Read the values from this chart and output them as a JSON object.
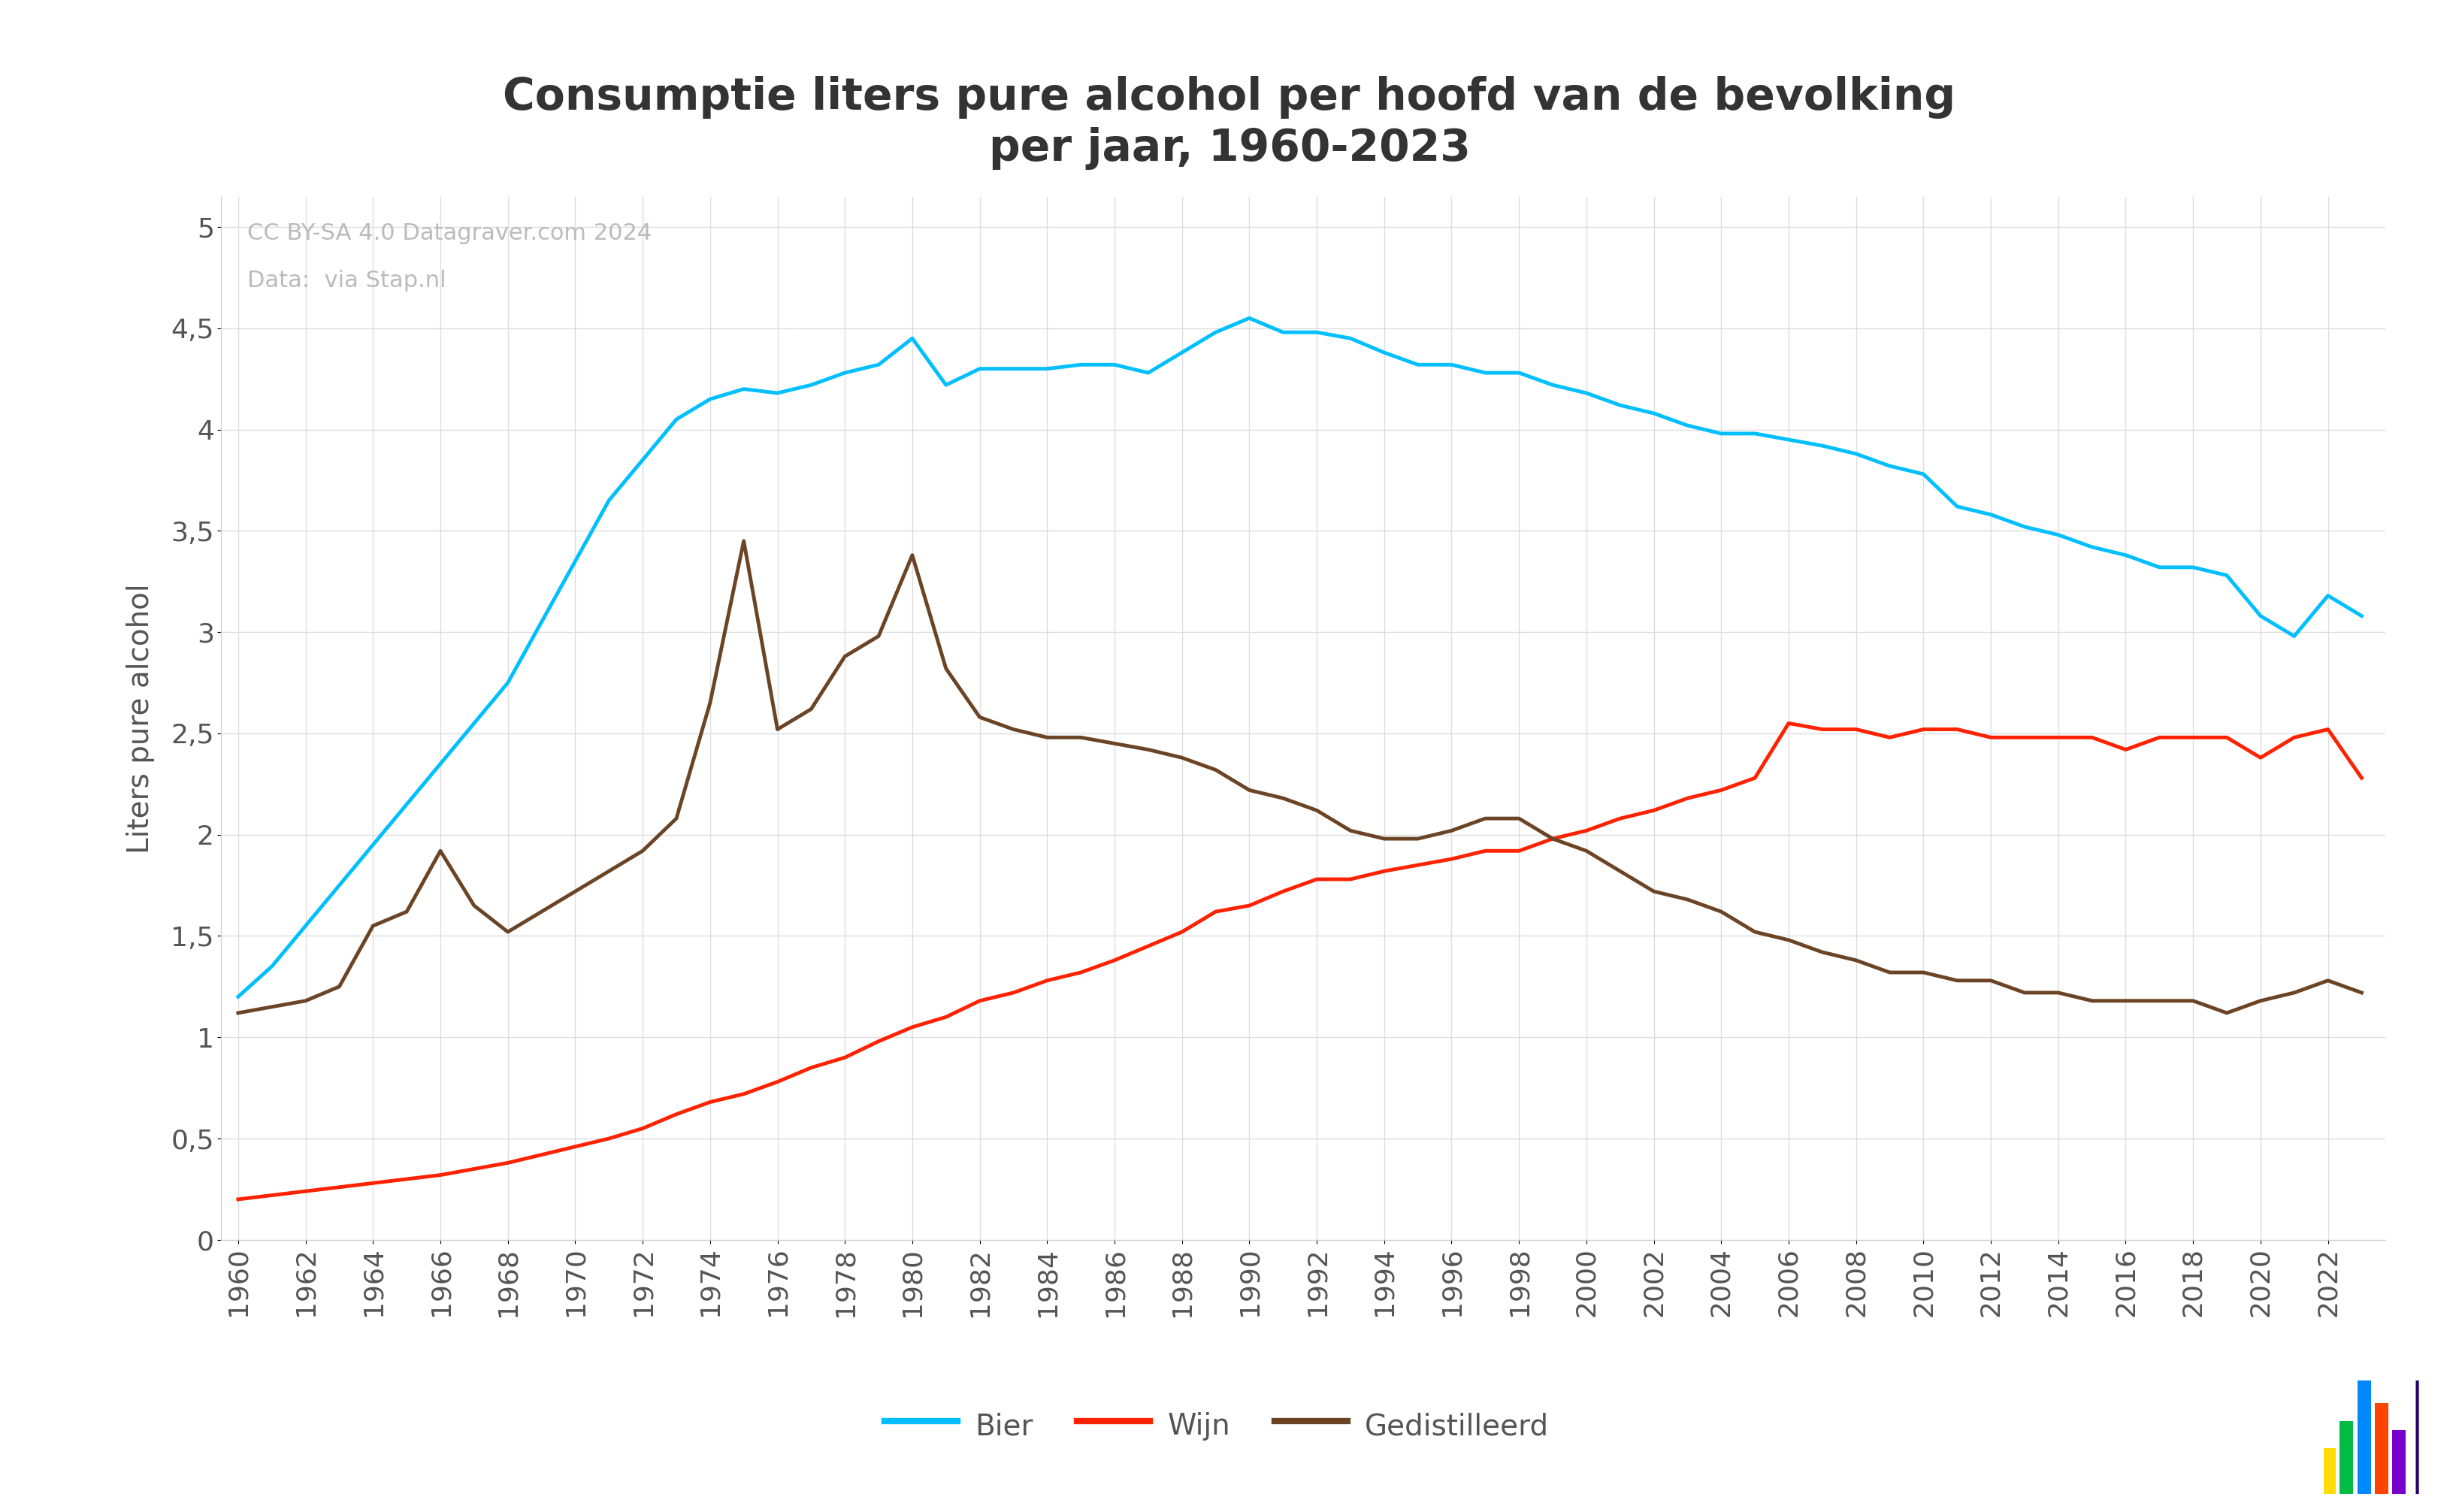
{
  "title": "Consumptie liters pure alcohol per hoofd van de bevolking\nper jaar, 1960-2023",
  "ylabel": "Liters pure alcohol",
  "credit_line1": "CC BY-SA 4.0 Datagraver.com 2024",
  "credit_line2": "Data:  via Stap.nl",
  "bier_color": "#00BFFF",
  "wijn_color": "#FF2200",
  "gedistilleerd_color": "#6B4426",
  "background_color": "#FFFFFF",
  "years": [
    1960,
    1961,
    1962,
    1963,
    1964,
    1965,
    1966,
    1967,
    1968,
    1969,
    1970,
    1971,
    1972,
    1973,
    1974,
    1975,
    1976,
    1977,
    1978,
    1979,
    1980,
    1981,
    1982,
    1983,
    1984,
    1985,
    1986,
    1987,
    1988,
    1989,
    1990,
    1991,
    1992,
    1993,
    1994,
    1995,
    1996,
    1997,
    1998,
    1999,
    2000,
    2001,
    2002,
    2003,
    2004,
    2005,
    2006,
    2007,
    2008,
    2009,
    2010,
    2011,
    2012,
    2013,
    2014,
    2015,
    2016,
    2017,
    2018,
    2019,
    2020,
    2021,
    2022,
    2023
  ],
  "bier": [
    1.2,
    1.35,
    1.55,
    1.75,
    1.95,
    2.15,
    2.35,
    2.55,
    2.75,
    3.05,
    3.35,
    3.65,
    3.85,
    4.05,
    4.15,
    4.2,
    4.18,
    4.22,
    4.28,
    4.32,
    4.45,
    4.22,
    4.3,
    4.3,
    4.3,
    4.32,
    4.32,
    4.28,
    4.38,
    4.48,
    4.55,
    4.48,
    4.48,
    4.45,
    4.38,
    4.32,
    4.32,
    4.28,
    4.28,
    4.22,
    4.18,
    4.12,
    4.08,
    4.02,
    3.98,
    3.98,
    3.95,
    3.92,
    3.88,
    3.82,
    3.78,
    3.62,
    3.58,
    3.52,
    3.48,
    3.42,
    3.38,
    3.32,
    3.32,
    3.28,
    3.08,
    2.98,
    3.18,
    3.08
  ],
  "wijn": [
    0.2,
    0.22,
    0.24,
    0.26,
    0.28,
    0.3,
    0.32,
    0.35,
    0.38,
    0.42,
    0.46,
    0.5,
    0.55,
    0.62,
    0.68,
    0.72,
    0.78,
    0.85,
    0.9,
    0.98,
    1.05,
    1.1,
    1.18,
    1.22,
    1.28,
    1.32,
    1.38,
    1.45,
    1.52,
    1.62,
    1.65,
    1.72,
    1.78,
    1.78,
    1.82,
    1.85,
    1.88,
    1.92,
    1.92,
    1.98,
    2.02,
    2.08,
    2.12,
    2.18,
    2.22,
    2.28,
    2.55,
    2.52,
    2.52,
    2.48,
    2.52,
    2.52,
    2.48,
    2.48,
    2.48,
    2.48,
    2.42,
    2.48,
    2.48,
    2.48,
    2.38,
    2.48,
    2.52,
    2.28
  ],
  "gedistilleerd": [
    1.12,
    1.15,
    1.18,
    1.25,
    1.55,
    1.62,
    1.92,
    1.65,
    1.52,
    1.62,
    1.72,
    1.82,
    1.92,
    2.08,
    2.65,
    3.45,
    2.52,
    2.62,
    2.88,
    2.98,
    3.38,
    2.82,
    2.58,
    2.52,
    2.48,
    2.48,
    2.45,
    2.42,
    2.38,
    2.32,
    2.22,
    2.18,
    2.12,
    2.02,
    1.98,
    1.98,
    2.02,
    2.08,
    2.08,
    1.98,
    1.92,
    1.82,
    1.72,
    1.68,
    1.62,
    1.52,
    1.48,
    1.42,
    1.38,
    1.32,
    1.32,
    1.28,
    1.28,
    1.22,
    1.22,
    1.18,
    1.18,
    1.18,
    1.18,
    1.12,
    1.18,
    1.22,
    1.28,
    1.22
  ],
  "ylim": [
    0,
    5.15
  ],
  "yticks": [
    0,
    0.5,
    1.0,
    1.5,
    2.0,
    2.5,
    3.0,
    3.5,
    4.0,
    4.5,
    5.0
  ],
  "ytick_labels": [
    "0",
    "0,5",
    "1",
    "1,5",
    "2",
    "2,5",
    "3",
    "3,5",
    "4",
    "4,5",
    "5"
  ],
  "line_width": 3.5,
  "title_fontsize": 42,
  "axis_label_fontsize": 28,
  "tick_fontsize": 26,
  "legend_fontsize": 28,
  "credit_fontsize": 22
}
